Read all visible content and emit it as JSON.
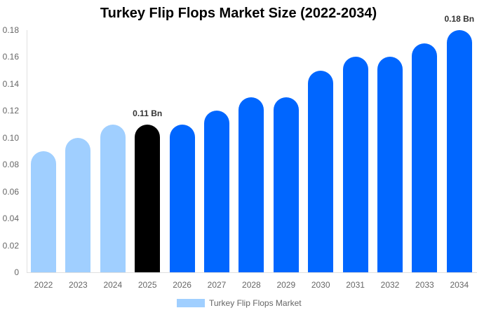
{
  "chart_data": {
    "type": "bar",
    "title": "Turkey Flip Flops Market Size (2022-2034)",
    "xlabel": "",
    "ylabel": "",
    "ylim": [
      0,
      0.18
    ],
    "yticks": [
      "0",
      "0.02",
      "0.04",
      "0.06",
      "0.08",
      "0.10",
      "0.12",
      "0.14",
      "0.16",
      "0.18"
    ],
    "categories": [
      "2022",
      "2023",
      "2024",
      "2025",
      "2026",
      "2027",
      "2028",
      "2029",
      "2030",
      "2031",
      "2032",
      "2033",
      "2034"
    ],
    "series": [
      {
        "name": "Turkey Flip Flops Market",
        "values": [
          0.09,
          0.1,
          0.11,
          0.11,
          0.11,
          0.12,
          0.13,
          0.13,
          0.15,
          0.16,
          0.16,
          0.17,
          0.18
        ]
      }
    ],
    "bar_colors": [
      "#a0cfff",
      "#a0cfff",
      "#a0cfff",
      "#000000",
      "#0066ff",
      "#0066ff",
      "#0066ff",
      "#0066ff",
      "#0066ff",
      "#0066ff",
      "#0066ff",
      "#0066ff",
      "#0066ff"
    ],
    "annotations": [
      {
        "category": "2025",
        "text": "0.11 Bn"
      },
      {
        "category": "2034",
        "text": "0.18 Bn"
      }
    ],
    "legend": {
      "label": "Turkey Flip Flops Market",
      "color": "#a0cfff",
      "position": "bottom"
    },
    "grid": false
  }
}
